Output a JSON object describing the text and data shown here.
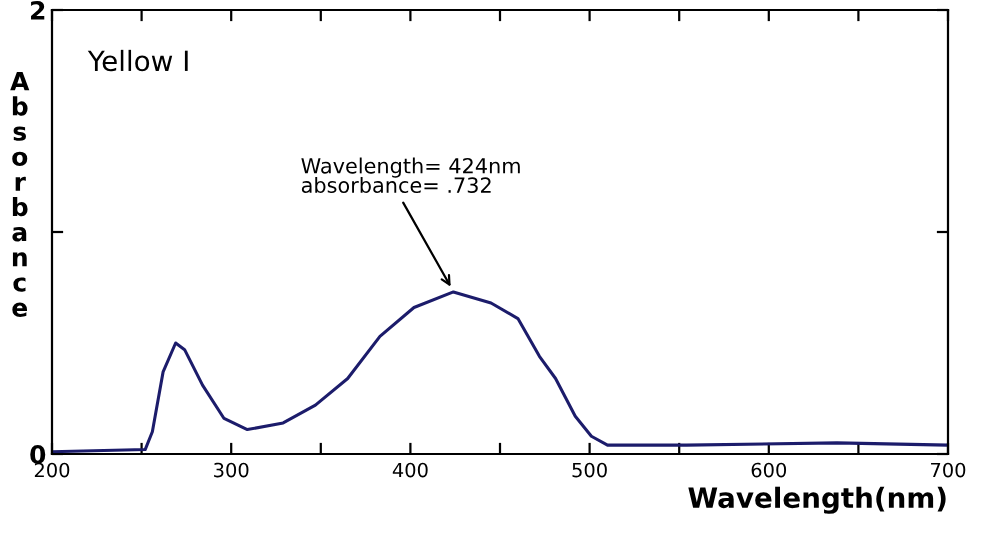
{
  "chart_data": {
    "type": "line",
    "title": "Yellow I",
    "xlabel": "Wavelength(nm)",
    "ylabel": "Absorbance",
    "x": [
      200,
      252,
      256,
      262,
      269,
      274,
      284,
      296,
      309,
      329,
      347,
      365,
      383,
      402,
      424,
      445,
      460,
      472,
      481,
      492,
      501,
      510,
      554,
      638,
      699
    ],
    "series": [
      {
        "color": "#1c1c6b",
        "values": [
          0.01,
          0.02,
          0.1,
          0.37,
          0.5,
          0.47,
          0.31,
          0.16,
          0.11,
          0.14,
          0.22,
          0.34,
          0.53,
          0.66,
          0.73,
          0.68,
          0.61,
          0.44,
          0.34,
          0.17,
          0.08,
          0.04,
          0.04,
          0.05,
          0.04
        ]
      }
    ],
    "xlim": [
      200,
      700
    ],
    "ylim": [
      0,
      2
    ],
    "xticks": [
      200,
      {
        "value": 250,
        "label": null
      },
      300,
      {
        "value": 350,
        "label": null
      },
      400,
      {
        "value": 450,
        "label": null
      },
      500,
      {
        "value": 550,
        "label": null
      },
      600,
      {
        "value": 650,
        "label": null
      },
      700
    ],
    "yticks": [
      0,
      {
        "value": 1,
        "label": null
      },
      2
    ],
    "annotations": [
      {
        "text": "Wavelength= 424nm\nabsorbance= .732",
        "x": 424,
        "y": 0.732
      }
    ],
    "grid": false,
    "legend": false,
    "marker": "none",
    "line_style": "solid"
  }
}
